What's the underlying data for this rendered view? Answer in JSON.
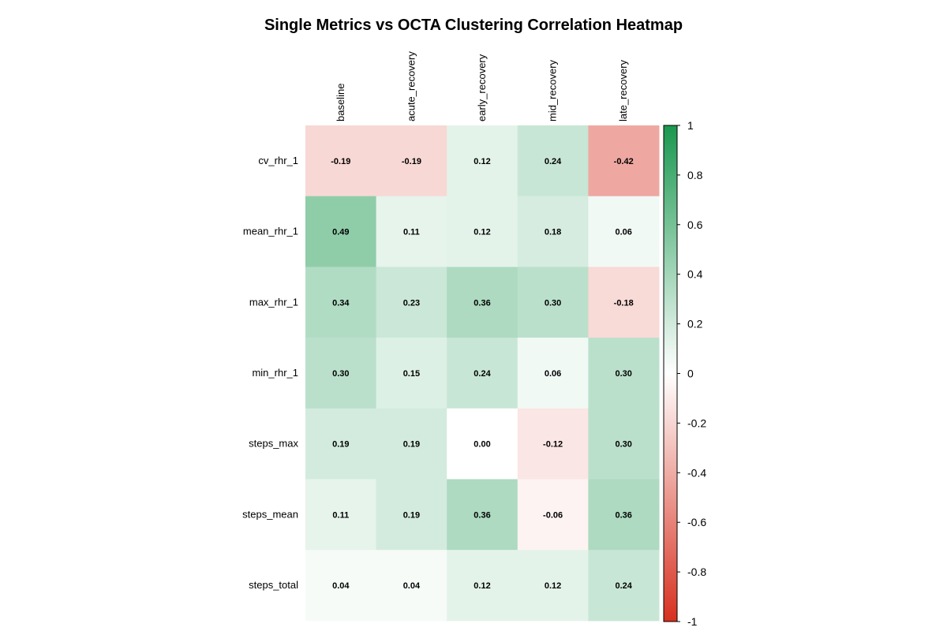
{
  "chart_data": {
    "type": "heatmap",
    "title": "Single Metrics vs OCTA Clustering Correlation Heatmap",
    "columns": [
      "baseline",
      "acute_recovery",
      "early_recovery",
      "mid_recovery",
      "late_recovery"
    ],
    "rows": [
      "cv_rhr_1",
      "mean_rhr_1",
      "max_rhr_1",
      "min_rhr_1",
      "steps_max",
      "steps_mean",
      "steps_total"
    ],
    "values": [
      [
        -0.19,
        -0.19,
        0.12,
        0.24,
        -0.42
      ],
      [
        0.49,
        0.11,
        0.12,
        0.18,
        0.06
      ],
      [
        0.34,
        0.23,
        0.36,
        0.3,
        -0.18
      ],
      [
        0.3,
        0.15,
        0.24,
        0.06,
        0.3
      ],
      [
        0.19,
        0.19,
        0.0,
        -0.12,
        0.3
      ],
      [
        0.11,
        0.19,
        0.36,
        -0.06,
        0.36
      ],
      [
        0.04,
        0.04,
        0.12,
        0.12,
        0.24
      ]
    ],
    "value_labels": [
      [
        "-0.19",
        "-0.19",
        "0.12",
        "0.24",
        "-0.42"
      ],
      [
        "0.49",
        "0.11",
        "0.12",
        "0.18",
        "0.06"
      ],
      [
        "0.34",
        "0.23",
        "0.36",
        "0.30",
        "-0.18"
      ],
      [
        "0.30",
        "0.15",
        "0.24",
        "0.06",
        "0.30"
      ],
      [
        "0.19",
        "0.19",
        "0.00",
        "-0.12",
        "0.30"
      ],
      [
        "0.11",
        "0.19",
        "0.36",
        "-0.06",
        "0.36"
      ],
      [
        "0.04",
        "0.04",
        "0.12",
        "0.12",
        "0.24"
      ]
    ],
    "color_scale": {
      "min": -1,
      "max": 1,
      "low_color": "#d7301f",
      "mid_color": "#ffffff",
      "high_color": "#1a9850",
      "ticks": [
        1,
        0.8,
        0.6,
        0.4,
        0.2,
        0,
        -0.2,
        -0.4,
        -0.6,
        -0.8,
        -1
      ],
      "tick_labels": [
        "1",
        "0.8",
        "0.6",
        "0.4",
        "0.2",
        "0",
        "-0.2",
        "-0.4",
        "-0.6",
        "-0.8",
        "-1"
      ]
    },
    "legend_position": "right"
  }
}
